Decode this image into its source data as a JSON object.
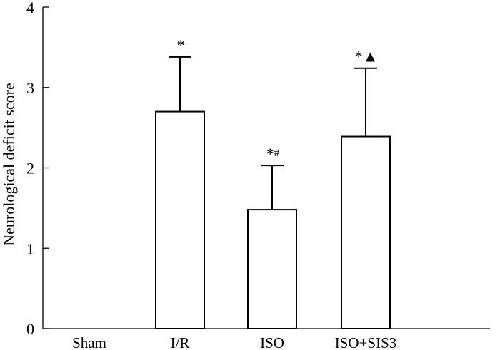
{
  "chart_data": {
    "type": "bar",
    "title": "",
    "xlabel": "",
    "ylabel": "Neurological deficit score",
    "ylim": [
      0,
      4
    ],
    "yticks": [
      "0",
      "1",
      "2",
      "3",
      "4"
    ],
    "categories": [
      "Sham",
      "I/R",
      "ISO",
      "ISO+SIS3"
    ],
    "values": [
      0,
      2.7,
      1.48,
      2.39
    ],
    "errors": [
      0,
      0.68,
      0.55,
      0.85
    ],
    "annotations": [
      "",
      "*",
      "*#",
      "*▲"
    ],
    "grid": false,
    "legend": "none",
    "bar_fill": "#ffffff",
    "bar_stroke": "#000000"
  }
}
